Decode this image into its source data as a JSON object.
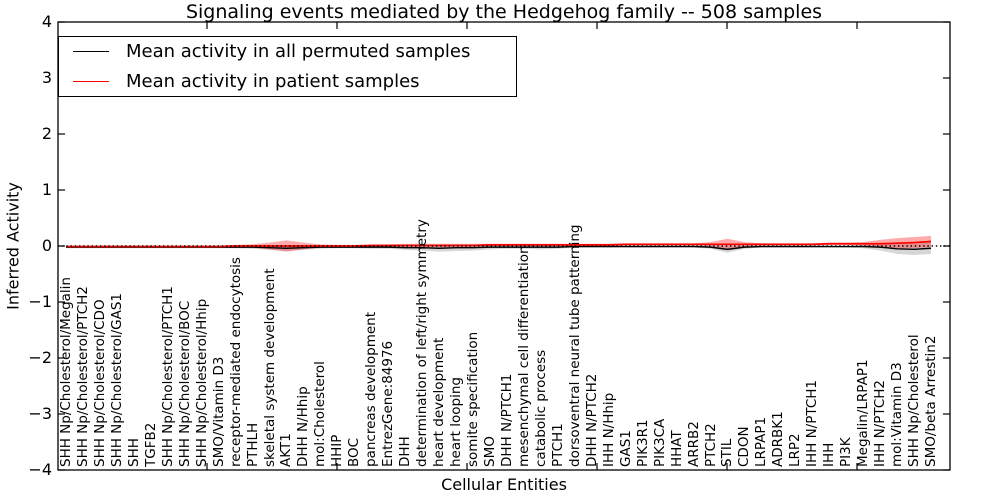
{
  "figure": {
    "background": "#ffffff",
    "accent_red": "#ff0000",
    "line_black": "#000000",
    "band_gray": "#999999"
  },
  "legend": {
    "position": "upper left",
    "items": [
      {
        "label": "Mean activity in all permuted samples",
        "color": "#000000"
      },
      {
        "label": "Mean activity in patient samples",
        "color": "#ff0000"
      }
    ]
  },
  "chart_data": {
    "type": "line",
    "title": "Signaling events mediated by the Hedgehog family -- 508 samples",
    "xlabel": "Cellular Entities",
    "ylabel": "Inferred Activity",
    "ylim": [
      -4,
      4
    ],
    "yticks": [
      4,
      3,
      2,
      1,
      0,
      -1,
      -2,
      -3,
      -4
    ],
    "ytick_labels": [
      "4",
      "3",
      "2",
      "1",
      "0",
      "−1",
      "−2",
      "−3",
      "−4"
    ],
    "grid": false,
    "zero_line": {
      "style": "dotted",
      "color": "#000000",
      "y": 0
    },
    "legend_position": "upper left",
    "x_tick_label_rotation": 90,
    "categories": [
      "SHH Np/Cholesterol/Megalin",
      "SHH Np/Cholesterol/PTCH2",
      "SHH Np/Cholesterol/CDO",
      "SHH Np/Cholesterol/GAS1",
      "SHH",
      "TGFB2",
      "SHH Np/Cholesterol/PTCH1",
      "SHH Np/Cholesterol/BOC",
      "SHH Np/Cholesterol/Hhip",
      "SMO/Vitamin D3",
      "receptor-mediated endocytosis",
      "PTHLH",
      "skeletal system development",
      "AKT1",
      "DHH N/Hhip",
      "mol:Cholesterol",
      "HHIP",
      "BOC",
      "pancreas development",
      "EntrezGene:84976",
      "DHH",
      "determination of left/right symmetry",
      "heart development",
      "heart looping",
      "somite specification",
      "SMO",
      "DHH N/PTCH1",
      "mesenchymal cell differentiation",
      "catabolic process",
      "PTCH1",
      "dorsoventral neural tube patterning",
      "DHH N/PTCH2",
      "IHH N/Hhip",
      "GAS1",
      "PIK3R1",
      "PIK3CA",
      "HHAT",
      "ARRB2",
      "PTCH2",
      "STIL",
      "CDON",
      "LRPAP1",
      "ADRBK1",
      "LRP2",
      "IHH N/PTCH1",
      "IHH",
      "PI3K",
      "Megalin/LRPAP1",
      "IHH N/PTCH2",
      "mol:Vitamin D3",
      "SHH Np/Cholesterol",
      "SMO/beta Arrestin2"
    ],
    "series": [
      {
        "name": "Mean activity in all permuted samples",
        "color": "#000000",
        "band_color": "#999999",
        "band_opacity": 0.4,
        "values": [
          -0.02,
          -0.02,
          -0.02,
          -0.02,
          -0.02,
          -0.02,
          -0.02,
          -0.02,
          -0.02,
          -0.02,
          -0.02,
          -0.02,
          -0.03,
          -0.04,
          -0.03,
          -0.02,
          -0.02,
          -0.02,
          -0.02,
          -0.02,
          -0.03,
          -0.03,
          -0.04,
          -0.03,
          -0.03,
          -0.02,
          -0.02,
          -0.02,
          -0.02,
          -0.02,
          -0.01,
          -0.01,
          -0.01,
          -0.01,
          -0.01,
          -0.01,
          -0.01,
          -0.01,
          -0.02,
          -0.06,
          -0.02,
          -0.01,
          -0.01,
          -0.01,
          -0.01,
          -0.01,
          -0.01,
          -0.01,
          -0.02,
          -0.05,
          -0.06,
          -0.04
        ],
        "band_halfwidth": [
          0.02,
          0.02,
          0.02,
          0.02,
          0.02,
          0.02,
          0.02,
          0.02,
          0.02,
          0.02,
          0.02,
          0.03,
          0.04,
          0.05,
          0.04,
          0.03,
          0.02,
          0.02,
          0.03,
          0.03,
          0.04,
          0.05,
          0.06,
          0.06,
          0.05,
          0.04,
          0.03,
          0.03,
          0.04,
          0.03,
          0.02,
          0.02,
          0.02,
          0.02,
          0.02,
          0.02,
          0.02,
          0.02,
          0.03,
          0.06,
          0.03,
          0.02,
          0.02,
          0.02,
          0.02,
          0.02,
          0.02,
          0.03,
          0.06,
          0.09,
          0.1,
          0.1
        ]
      },
      {
        "name": "Mean activity in patient samples",
        "color": "#ff0000",
        "band_color": "#ff0000",
        "band_opacity": 0.33,
        "values": [
          -0.01,
          -0.01,
          -0.01,
          -0.01,
          -0.01,
          -0.01,
          -0.01,
          -0.01,
          -0.01,
          -0.01,
          0.0,
          0.0,
          0.0,
          0.0,
          0.0,
          0.0,
          0.0,
          0.0,
          0.01,
          0.01,
          0.01,
          0.01,
          0.01,
          0.01,
          0.01,
          0.02,
          0.02,
          0.02,
          0.02,
          0.02,
          0.02,
          0.02,
          0.02,
          0.03,
          0.03,
          0.03,
          0.03,
          0.03,
          0.03,
          0.03,
          0.03,
          0.03,
          0.03,
          0.03,
          0.03,
          0.04,
          0.04,
          0.04,
          0.04,
          0.05,
          0.06,
          0.08
        ],
        "band_halfwidth": [
          0.02,
          0.02,
          0.02,
          0.02,
          0.02,
          0.02,
          0.02,
          0.02,
          0.02,
          0.02,
          0.02,
          0.03,
          0.06,
          0.1,
          0.06,
          0.03,
          0.02,
          0.02,
          0.02,
          0.02,
          0.03,
          0.03,
          0.03,
          0.03,
          0.03,
          0.02,
          0.02,
          0.02,
          0.02,
          0.02,
          0.02,
          0.02,
          0.02,
          0.02,
          0.02,
          0.02,
          0.02,
          0.02,
          0.04,
          0.1,
          0.04,
          0.02,
          0.02,
          0.02,
          0.02,
          0.02,
          0.02,
          0.03,
          0.07,
          0.09,
          0.1,
          0.1
        ]
      }
    ]
  }
}
